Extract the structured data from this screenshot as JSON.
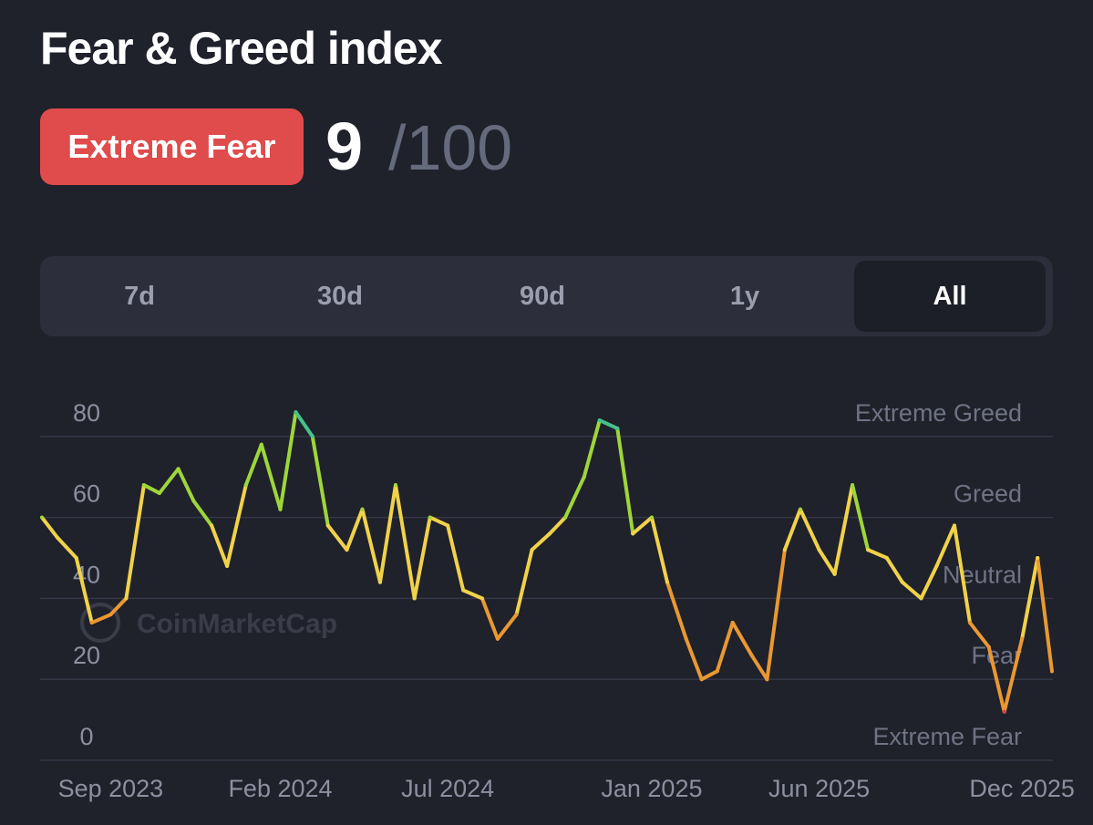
{
  "header": {
    "title": "Fear & Greed index"
  },
  "score": {
    "label": "Extreme Fear",
    "value": "9",
    "max": "/100"
  },
  "tabs": [
    "7d",
    "30d",
    "90d",
    "1y",
    "All"
  ],
  "active_tab": "All",
  "watermark": "CoinMarketCap",
  "colors": {
    "background": "#1f212b",
    "badge": "#e04b4b",
    "extreme_fear": "#e03c4a",
    "fear": "#e99832",
    "neutral": "#f0d24a",
    "greed": "#9dd63a",
    "extreme_greed": "#45c28a"
  },
  "chart_data": {
    "type": "line",
    "title": "",
    "xlabel": "",
    "ylabel": "",
    "ylim": [
      0,
      100
    ],
    "yticks": [
      0,
      20,
      40,
      60,
      80
    ],
    "grid": true,
    "zones": [
      "Extreme Fear",
      "Fear",
      "Neutral",
      "Greed",
      "Extreme Greed"
    ],
    "xtick_labels": [
      "Sep 2023",
      "Feb 2024",
      "Jul 2024",
      "Jan 2025",
      "Jun 2025",
      "Dec 2025"
    ],
    "xtick_dates": [
      "2023-09-01",
      "2024-02-01",
      "2024-07-01",
      "2025-01-01",
      "2025-06-01",
      "2025-12-01"
    ],
    "x": [
      "2023-07-01",
      "2023-07-15",
      "2023-08-01",
      "2023-08-15",
      "2023-09-01",
      "2023-09-15",
      "2023-10-01",
      "2023-10-15",
      "2023-11-01",
      "2023-11-15",
      "2023-12-01",
      "2023-12-15",
      "2024-01-01",
      "2024-01-15",
      "2024-02-01",
      "2024-02-15",
      "2024-03-01",
      "2024-03-15",
      "2024-04-01",
      "2024-04-15",
      "2024-05-01",
      "2024-05-15",
      "2024-06-01",
      "2024-06-15",
      "2024-07-01",
      "2024-07-15",
      "2024-08-01",
      "2024-08-15",
      "2024-09-01",
      "2024-09-15",
      "2024-10-01",
      "2024-10-15",
      "2024-11-01",
      "2024-11-15",
      "2024-12-01",
      "2024-12-15",
      "2025-01-01",
      "2025-01-15",
      "2025-02-01",
      "2025-02-15",
      "2025-03-01",
      "2025-03-15",
      "2025-04-01",
      "2025-04-15",
      "2025-05-01",
      "2025-05-15",
      "2025-06-01",
      "2025-06-15",
      "2025-07-01",
      "2025-07-15",
      "2025-08-01",
      "2025-08-15",
      "2025-09-01",
      "2025-09-15",
      "2025-10-01",
      "2025-10-15",
      "2025-11-01",
      "2025-11-15",
      "2025-12-01",
      "2025-12-15",
      "2025-12-28"
    ],
    "series": [
      {
        "values": [
          60,
          55,
          50,
          34,
          36,
          40,
          68,
          66,
          72,
          64,
          58,
          48,
          68,
          78,
          62,
          86,
          80,
          58,
          52,
          62,
          44,
          68,
          40,
          60,
          58,
          42,
          40,
          30,
          36,
          52,
          56,
          60,
          70,
          84,
          82,
          56,
          60,
          44,
          30,
          20,
          22,
          34,
          26,
          20,
          52,
          62,
          52,
          46,
          68,
          52,
          50,
          44,
          40,
          48,
          58,
          34,
          28,
          12,
          30,
          50,
          22
        ]
      }
    ]
  }
}
